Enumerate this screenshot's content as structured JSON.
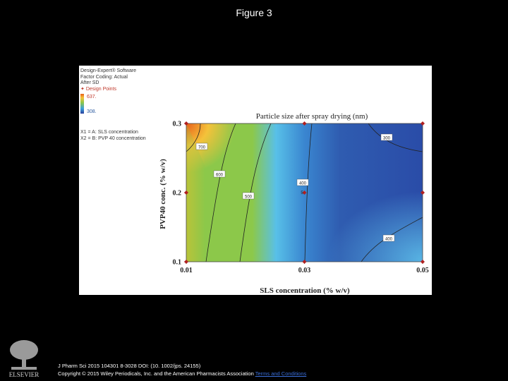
{
  "slide": {
    "title": "Figure 3"
  },
  "legend": {
    "line1": "Design-Expert® Software",
    "line2": "Factor Coding: Actual",
    "line3": "After SD",
    "design_points": "Design Points",
    "high_value": "637.",
    "low_value": "308.",
    "x1": "X1 = A: SLS concentration",
    "x2": "X2 = B: PVP 40 concentration",
    "gradient_top_color": "#e8611a",
    "gradient_bottom_color": "#2a3f9c"
  },
  "chart_data": {
    "type": "contour",
    "title": "Particle size after spray drying (nm)",
    "xlabel": "SLS concentration  (% w/v)",
    "ylabel": "PVP40 conc. (% w/v)",
    "xlim": [
      0.01,
      0.05
    ],
    "ylim": [
      0.1,
      0.3
    ],
    "x_ticks": [
      0.01,
      0.03,
      0.05
    ],
    "x_tick_labels": [
      "0.01",
      "0.03",
      "0.05"
    ],
    "y_ticks": [
      0.1,
      0.2,
      0.3
    ],
    "y_tick_labels": [
      "0.1",
      "0.2",
      "0.3"
    ],
    "contour_labels": [
      "700",
      "600",
      "500",
      "400",
      "300",
      "400"
    ],
    "design_point_count_label": "5",
    "design_points": [
      {
        "x": 0.01,
        "y": 0.3
      },
      {
        "x": 0.03,
        "y": 0.3
      },
      {
        "x": 0.05,
        "y": 0.3
      },
      {
        "x": 0.01,
        "y": 0.2
      },
      {
        "x": 0.03,
        "y": 0.2
      },
      {
        "x": 0.05,
        "y": 0.2
      },
      {
        "x": 0.01,
        "y": 0.1
      },
      {
        "x": 0.03,
        "y": 0.1
      },
      {
        "x": 0.05,
        "y": 0.1
      }
    ],
    "colors": {
      "high": "#e8611a",
      "mid_high": "#f4c23a",
      "mid": "#8cc84a",
      "mid_low": "#58c0e8",
      "low": "#2a3f9c",
      "point": "#b02020"
    }
  },
  "footer": {
    "citation_line1": "J Pharm Sci 2015 104301 8-3028 DOI: (10. 1002/jps. 24155)",
    "citation_line2": "Copyright © 2015 Wiley Periodicals, Inc. and the American Pharmacists Association",
    "terms_link": "Terms and Conditions",
    "logo_text": "ELSEVIER"
  }
}
